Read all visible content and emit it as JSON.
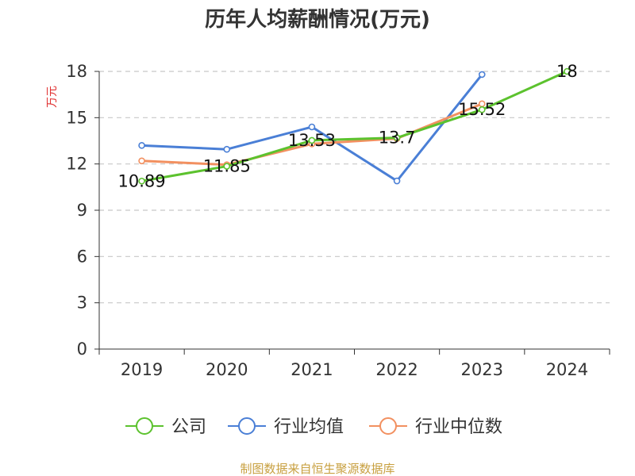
{
  "chart_data": {
    "type": "line",
    "title": "历年人均薪酬情况(万元)",
    "ylabel": "万元",
    "xlabel": "",
    "categories": [
      "2019",
      "2020",
      "2021",
      "2022",
      "2023",
      "2024"
    ],
    "ylim": [
      0,
      18
    ],
    "yticks": [
      0,
      3,
      6,
      9,
      12,
      15,
      18
    ],
    "grid": true,
    "legend_position": "bottom",
    "series": [
      {
        "name": "公司",
        "color": "#5cc22e",
        "values": [
          10.89,
          11.85,
          13.53,
          13.7,
          15.52,
          18
        ],
        "labels": [
          "10.89",
          "11.85",
          "13.53",
          "13.7",
          "15.52",
          "18"
        ]
      },
      {
        "name": "行业均值",
        "color": "#4a7fd6",
        "values": [
          13.2,
          12.95,
          14.4,
          10.9,
          17.8,
          null
        ]
      },
      {
        "name": "行业中位数",
        "color": "#f29060",
        "values": [
          12.2,
          11.95,
          13.3,
          13.65,
          15.9,
          null
        ]
      }
    ]
  },
  "source": "制图数据来自恒生聚源数据库"
}
